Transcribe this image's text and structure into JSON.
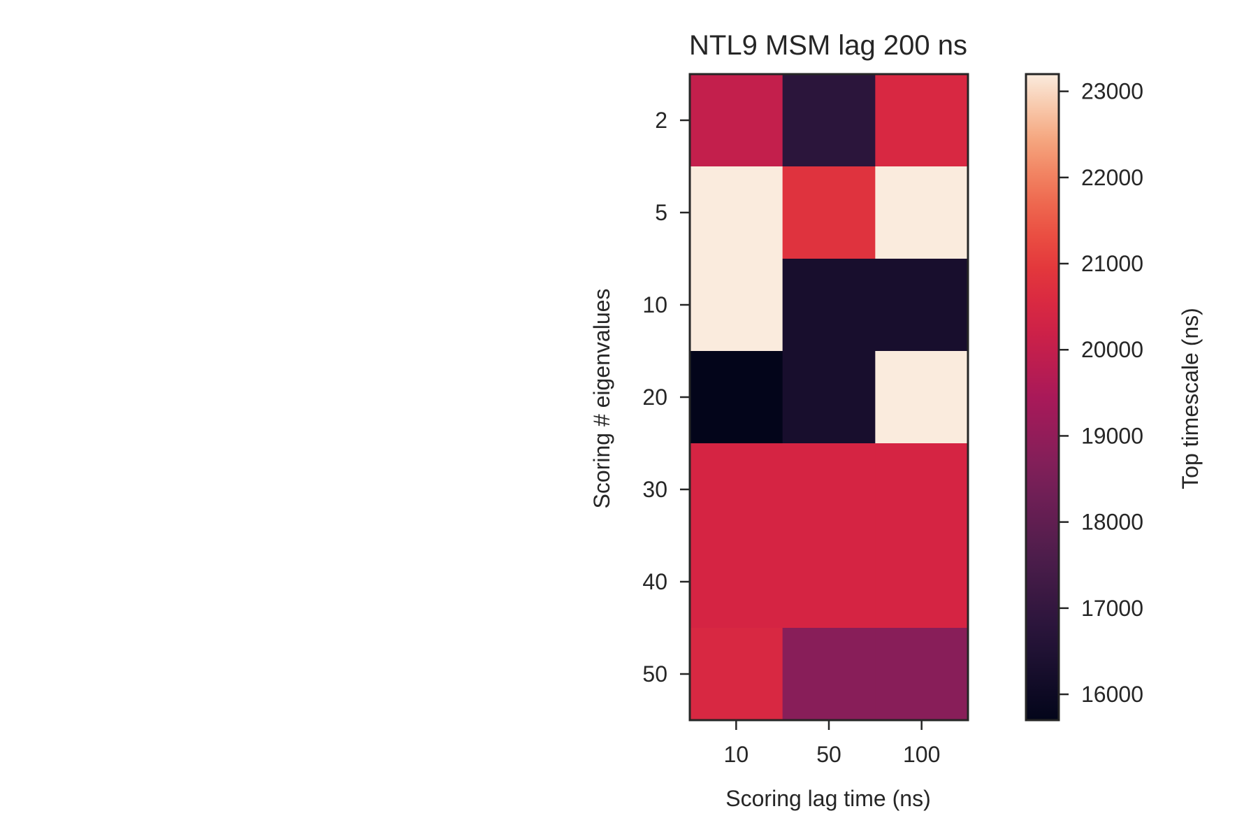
{
  "chart_data": {
    "type": "heatmap",
    "title": "NTL9 MSM lag 200 ns",
    "xlabel": "Scoring lag time (ns)",
    "ylabel": "Scoring # eigenvalues",
    "x_categories": [
      "10",
      "50",
      "100"
    ],
    "y_categories": [
      "2",
      "5",
      "10",
      "20",
      "30",
      "40",
      "50"
    ],
    "values": [
      [
        20000,
        16800,
        20500
      ],
      [
        23200,
        20800,
        23200
      ],
      [
        23200,
        16300,
        16300
      ],
      [
        15700,
        16300,
        23200
      ],
      [
        20400,
        20400,
        20400
      ],
      [
        20400,
        20400,
        20400
      ],
      [
        20500,
        18800,
        18800
      ]
    ],
    "colorbar": {
      "label": "Top timescale (ns)",
      "range": [
        15700,
        23200
      ],
      "ticks": [
        16000,
        17000,
        18000,
        19000,
        20000,
        21000,
        22000,
        23000
      ],
      "colormap": "rocket"
    }
  }
}
